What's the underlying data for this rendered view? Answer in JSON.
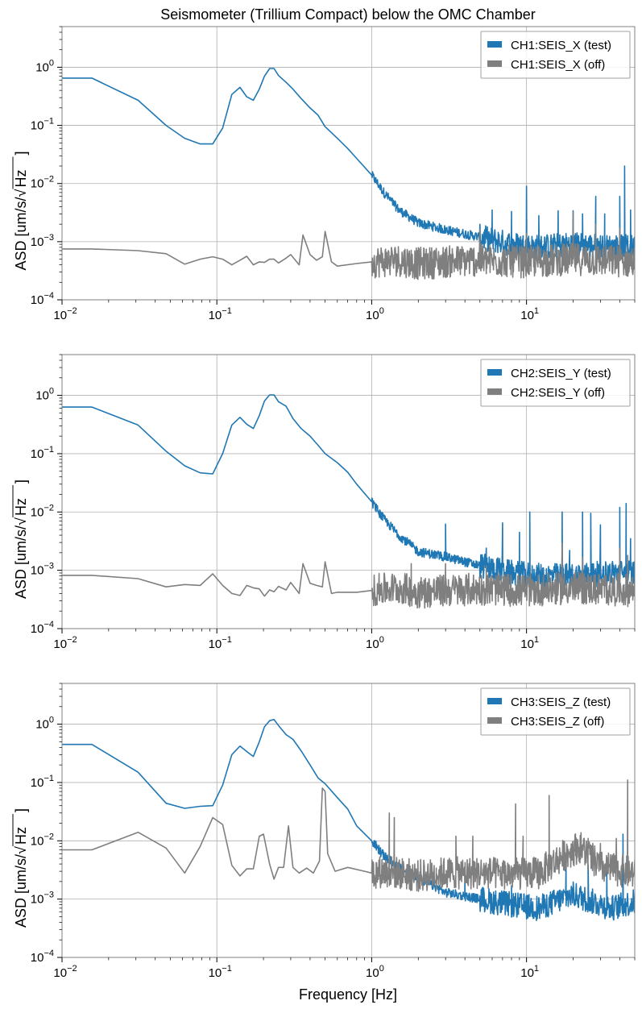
{
  "figure": {
    "title": "Seismometer (Trillium Compact) below the OMC Chamber",
    "xlabel": "Frequency [Hz]"
  },
  "colors": {
    "test": "#1f77b4",
    "off": "#7f7f7f",
    "grid": "#b0b0b0",
    "axes": "#808080"
  },
  "chart_data": [
    {
      "type": "line",
      "panel": "CH1",
      "title": "Seismometer (Trillium Compact) below the OMC Chamber",
      "xlabel": "",
      "ylabel_parts": {
        "prefix": "ASD [um/s/",
        "root": "Hz",
        "suffix": "]"
      },
      "xscale": "log",
      "yscale": "log",
      "xlim": [
        0.01,
        50
      ],
      "ylim": [
        0.0001,
        5
      ],
      "grid": true,
      "legend_position": "top-right",
      "x_ticks": [
        {
          "v": 0.01,
          "base": "10",
          "exp": "−2"
        },
        {
          "v": 0.1,
          "base": "10",
          "exp": "−1"
        },
        {
          "v": 1,
          "base": "10",
          "exp": "0"
        },
        {
          "v": 10,
          "base": "10",
          "exp": "1"
        }
      ],
      "y_ticks": [
        {
          "v": 1,
          "base": "10",
          "exp": "0"
        },
        {
          "v": 0.1,
          "base": "10",
          "exp": "−1"
        },
        {
          "v": 0.01,
          "base": "10",
          "exp": "−2"
        },
        {
          "v": 0.001,
          "base": "10",
          "exp": "−3"
        },
        {
          "v": 0.0001,
          "base": "10",
          "exp": "−4"
        }
      ],
      "series": [
        {
          "name": "CH1:SEIS_X (test)",
          "key": "test",
          "x": [
            0.01,
            0.0156,
            0.031,
            0.047,
            0.062,
            0.078,
            0.094,
            0.109,
            0.125,
            0.141,
            0.156,
            0.172,
            0.188,
            0.203,
            0.219,
            0.234,
            0.25,
            0.28,
            0.31,
            0.35,
            0.4,
            0.45,
            0.5,
            0.6,
            0.7,
            0.8,
            1.0,
            1.2,
            1.5,
            2.0,
            3.0,
            5.0,
            8.0,
            12.0,
            20.0,
            35.0,
            50.0
          ],
          "y": [
            0.65,
            0.65,
            0.27,
            0.1,
            0.06,
            0.048,
            0.048,
            0.09,
            0.34,
            0.45,
            0.31,
            0.27,
            0.42,
            0.7,
            0.95,
            0.95,
            0.72,
            0.55,
            0.42,
            0.29,
            0.2,
            0.15,
            0.095,
            0.06,
            0.04,
            0.027,
            0.014,
            0.007,
            0.0035,
            0.0021,
            0.0016,
            0.0012,
            0.0009,
            0.0008,
            0.0009,
            0.0008,
            0.0008
          ],
          "spikes": [
            {
              "x": 6.0,
              "y": 0.0035
            },
            {
              "x": 8.0,
              "y": 0.0033
            },
            {
              "x": 10.0,
              "y": 0.009
            },
            {
              "x": 12.0,
              "y": 0.0028
            },
            {
              "x": 16.0,
              "y": 0.0034
            },
            {
              "x": 20.0,
              "y": 0.0034
            },
            {
              "x": 23.0,
              "y": 0.003
            },
            {
              "x": 28.0,
              "y": 0.006
            },
            {
              "x": 32.0,
              "y": 0.003
            },
            {
              "x": 40.0,
              "y": 0.006
            },
            {
              "x": 43.0,
              "y": 0.02
            },
            {
              "x": 47.0,
              "y": 0.0035
            }
          ]
        },
        {
          "name": "CH1:SEIS_X (off)",
          "key": "off",
          "x": [
            0.01,
            0.0156,
            0.031,
            0.047,
            0.062,
            0.078,
            0.094,
            0.109,
            0.125,
            0.141,
            0.156,
            0.172,
            0.188,
            0.203,
            0.219,
            0.234,
            0.25,
            0.28,
            0.3,
            0.34,
            0.36,
            0.4,
            0.44,
            0.48,
            0.5,
            0.55,
            0.6,
            0.8,
            1.0,
            1.5,
            2.0,
            3.0,
            5.0,
            10.0,
            20.0,
            50.0
          ],
          "y": [
            0.00075,
            0.00075,
            0.0007,
            0.00062,
            0.00041,
            0.0005,
            0.00055,
            0.0005,
            0.0004,
            0.00048,
            0.00056,
            0.0004,
            0.00045,
            0.00044,
            0.0005,
            0.0005,
            0.00043,
            0.00052,
            0.0006,
            0.0004,
            0.0013,
            0.0006,
            0.00048,
            0.00055,
            0.0015,
            0.00045,
            0.00038,
            0.00042,
            0.00045,
            0.00048,
            0.00042,
            0.00045,
            0.00048,
            0.00045,
            0.0005,
            0.00045
          ],
          "spikes": [
            {
              "x": 5.0,
              "y": 0.0016
            },
            {
              "x": 10.0,
              "y": 0.0014
            },
            {
              "x": 20.0,
              "y": 0.0032
            },
            {
              "x": 28.0,
              "y": 0.002
            },
            {
              "x": 40.0,
              "y": 0.0017
            }
          ]
        }
      ]
    },
    {
      "type": "line",
      "panel": "CH2",
      "xlabel": "",
      "ylabel_parts": {
        "prefix": "ASD [um/s/",
        "root": "Hz",
        "suffix": "]"
      },
      "xscale": "log",
      "yscale": "log",
      "xlim": [
        0.01,
        50
      ],
      "ylim": [
        0.0001,
        5
      ],
      "grid": true,
      "legend_position": "top-right",
      "x_ticks": [
        {
          "v": 0.01,
          "base": "10",
          "exp": "−2"
        },
        {
          "v": 0.1,
          "base": "10",
          "exp": "−1"
        },
        {
          "v": 1,
          "base": "10",
          "exp": "0"
        },
        {
          "v": 10,
          "base": "10",
          "exp": "1"
        }
      ],
      "y_ticks": [
        {
          "v": 1,
          "base": "10",
          "exp": "0"
        },
        {
          "v": 0.1,
          "base": "10",
          "exp": "−1"
        },
        {
          "v": 0.01,
          "base": "10",
          "exp": "−2"
        },
        {
          "v": 0.001,
          "base": "10",
          "exp": "−3"
        },
        {
          "v": 0.0001,
          "base": "10",
          "exp": "−4"
        }
      ],
      "series": [
        {
          "name": "CH2:SEIS_Y (test)",
          "key": "test",
          "x": [
            0.01,
            0.0156,
            0.031,
            0.047,
            0.062,
            0.078,
            0.094,
            0.109,
            0.125,
            0.141,
            0.156,
            0.172,
            0.188,
            0.203,
            0.219,
            0.234,
            0.25,
            0.28,
            0.31,
            0.35,
            0.4,
            0.45,
            0.5,
            0.6,
            0.7,
            0.8,
            1.0,
            1.2,
            1.5,
            2.0,
            3.0,
            5.0,
            8.0,
            12.0,
            20.0,
            35.0,
            50.0
          ],
          "y": [
            0.63,
            0.63,
            0.31,
            0.11,
            0.062,
            0.047,
            0.045,
            0.1,
            0.31,
            0.42,
            0.32,
            0.27,
            0.45,
            0.8,
            1.02,
            1.02,
            0.78,
            0.65,
            0.4,
            0.27,
            0.2,
            0.14,
            0.1,
            0.07,
            0.048,
            0.03,
            0.015,
            0.0075,
            0.004,
            0.0021,
            0.0017,
            0.0012,
            0.0009,
            0.0008,
            0.0008,
            0.0009,
            0.0009
          ],
          "spikes": [
            {
              "x": 3.0,
              "y": 0.0062
            },
            {
              "x": 5.5,
              "y": 0.0024
            },
            {
              "x": 7.0,
              "y": 0.0065
            },
            {
              "x": 9.0,
              "y": 0.0045
            },
            {
              "x": 10.5,
              "y": 0.01
            },
            {
              "x": 17.0,
              "y": 0.01
            },
            {
              "x": 19.0,
              "y": 0.0022
            },
            {
              "x": 23.0,
              "y": 0.01
            },
            {
              "x": 26.0,
              "y": 0.0095
            },
            {
              "x": 30.0,
              "y": 0.006
            },
            {
              "x": 40.0,
              "y": 0.012
            },
            {
              "x": 44.0,
              "y": 0.014
            },
            {
              "x": 47.0,
              "y": 0.0035
            }
          ]
        },
        {
          "name": "CH2:SEIS_Y (off)",
          "key": "off",
          "x": [
            0.01,
            0.0156,
            0.031,
            0.047,
            0.062,
            0.078,
            0.094,
            0.109,
            0.125,
            0.141,
            0.156,
            0.172,
            0.188,
            0.203,
            0.219,
            0.234,
            0.25,
            0.28,
            0.3,
            0.34,
            0.36,
            0.4,
            0.44,
            0.48,
            0.5,
            0.55,
            0.6,
            0.8,
            1.0,
            1.5,
            2.0,
            3.0,
            5.0,
            10.0,
            20.0,
            50.0
          ],
          "y": [
            0.00082,
            0.00082,
            0.00072,
            0.00052,
            0.00057,
            0.00055,
            0.00087,
            0.00055,
            0.0004,
            0.00037,
            0.00055,
            0.0005,
            0.00048,
            0.00036,
            0.00046,
            0.00043,
            0.00053,
            0.00046,
            0.00062,
            0.0004,
            0.0013,
            0.0006,
            0.00055,
            0.00052,
            0.0014,
            0.0004,
            0.00042,
            0.00042,
            0.00045,
            0.0005,
            0.00042,
            0.00045,
            0.00048,
            0.00045,
            0.0005,
            0.00045
          ],
          "spikes": [
            {
              "x": 1.8,
              "y": 0.0013
            },
            {
              "x": 3.0,
              "y": 0.0013
            },
            {
              "x": 5.5,
              "y": 0.0012
            },
            {
              "x": 17.0,
              "y": 0.0029
            },
            {
              "x": 23.0,
              "y": 0.0017
            },
            {
              "x": 40.0,
              "y": 0.0024
            },
            {
              "x": 45.0,
              "y": 0.0018
            }
          ]
        }
      ]
    },
    {
      "type": "line",
      "panel": "CH3",
      "xlabel": "Frequency [Hz]",
      "ylabel_parts": {
        "prefix": "ASD [um/s/",
        "root": "Hz",
        "suffix": "]"
      },
      "xscale": "log",
      "yscale": "log",
      "xlim": [
        0.01,
        50
      ],
      "ylim": [
        0.0001,
        5
      ],
      "grid": true,
      "legend_position": "top-right",
      "x_ticks": [
        {
          "v": 0.01,
          "base": "10",
          "exp": "−2"
        },
        {
          "v": 0.1,
          "base": "10",
          "exp": "−1"
        },
        {
          "v": 1,
          "base": "10",
          "exp": "0"
        },
        {
          "v": 10,
          "base": "10",
          "exp": "1"
        }
      ],
      "y_ticks": [
        {
          "v": 1,
          "base": "10",
          "exp": "0"
        },
        {
          "v": 0.1,
          "base": "10",
          "exp": "−1"
        },
        {
          "v": 0.01,
          "base": "10",
          "exp": "−2"
        },
        {
          "v": 0.001,
          "base": "10",
          "exp": "−3"
        },
        {
          "v": 0.0001,
          "base": "10",
          "exp": "−4"
        }
      ],
      "series": [
        {
          "name": "CH3:SEIS_Z (test)",
          "key": "test",
          "x": [
            0.01,
            0.0156,
            0.031,
            0.047,
            0.062,
            0.078,
            0.094,
            0.109,
            0.125,
            0.141,
            0.156,
            0.172,
            0.188,
            0.203,
            0.219,
            0.234,
            0.25,
            0.28,
            0.31,
            0.35,
            0.4,
            0.45,
            0.5,
            0.6,
            0.7,
            0.8,
            1.0,
            1.2,
            1.5,
            2.0,
            3.0,
            5.0,
            8.0,
            12.0,
            20.0,
            35.0,
            50.0
          ],
          "y": [
            0.45,
            0.45,
            0.15,
            0.044,
            0.036,
            0.039,
            0.04,
            0.09,
            0.3,
            0.42,
            0.34,
            0.28,
            0.5,
            0.9,
            1.15,
            1.2,
            0.95,
            0.66,
            0.55,
            0.35,
            0.2,
            0.12,
            0.095,
            0.055,
            0.035,
            0.018,
            0.01,
            0.0055,
            0.0035,
            0.0023,
            0.0013,
            0.001,
            0.0008,
            0.0007,
            0.0012,
            0.0007,
            0.0009
          ],
          "spikes": [
            {
              "x": 4.0,
              "y": 0.0035
            },
            {
              "x": 8.0,
              "y": 0.0017
            },
            {
              "x": 18.0,
              "y": 0.004
            },
            {
              "x": 25.0,
              "y": 0.0038
            },
            {
              "x": 33.0,
              "y": 0.003
            },
            {
              "x": 42.0,
              "y": 0.013
            }
          ]
        },
        {
          "name": "CH3:SEIS_Z (off)",
          "key": "off",
          "x": [
            0.01,
            0.0156,
            0.031,
            0.047,
            0.062,
            0.078,
            0.094,
            0.109,
            0.125,
            0.141,
            0.156,
            0.172,
            0.188,
            0.2,
            0.219,
            0.234,
            0.25,
            0.27,
            0.29,
            0.31,
            0.34,
            0.38,
            0.42,
            0.46,
            0.48,
            0.5,
            0.52,
            0.58,
            0.7,
            0.9,
            1.0,
            1.2,
            1.5,
            2.0,
            3.0,
            5.0,
            8.0,
            12.0,
            18.0,
            22.0,
            30.0,
            50.0
          ],
          "y": [
            0.007,
            0.007,
            0.014,
            0.0075,
            0.0028,
            0.008,
            0.025,
            0.019,
            0.0038,
            0.0025,
            0.0033,
            0.0033,
            0.012,
            0.013,
            0.004,
            0.0022,
            0.0035,
            0.0035,
            0.018,
            0.0035,
            0.0028,
            0.0034,
            0.0028,
            0.0045,
            0.08,
            0.07,
            0.006,
            0.003,
            0.0035,
            0.003,
            0.0028,
            0.003,
            0.0028,
            0.0025,
            0.0028,
            0.0028,
            0.0027,
            0.0028,
            0.006,
            0.008,
            0.0035,
            0.0028
          ],
          "spikes": [
            {
              "x": 1.3,
              "y": 0.03
            },
            {
              "x": 1.4,
              "y": 0.025
            },
            {
              "x": 3.5,
              "y": 0.012
            },
            {
              "x": 4.5,
              "y": 0.012
            },
            {
              "x": 8.5,
              "y": 0.043
            },
            {
              "x": 9.5,
              "y": 0.012
            },
            {
              "x": 14.0,
              "y": 0.06
            },
            {
              "x": 25.0,
              "y": 0.011
            },
            {
              "x": 30.0,
              "y": 0.009
            },
            {
              "x": 38.0,
              "y": 0.011
            },
            {
              "x": 45.0,
              "y": 0.11
            }
          ]
        }
      ]
    }
  ]
}
